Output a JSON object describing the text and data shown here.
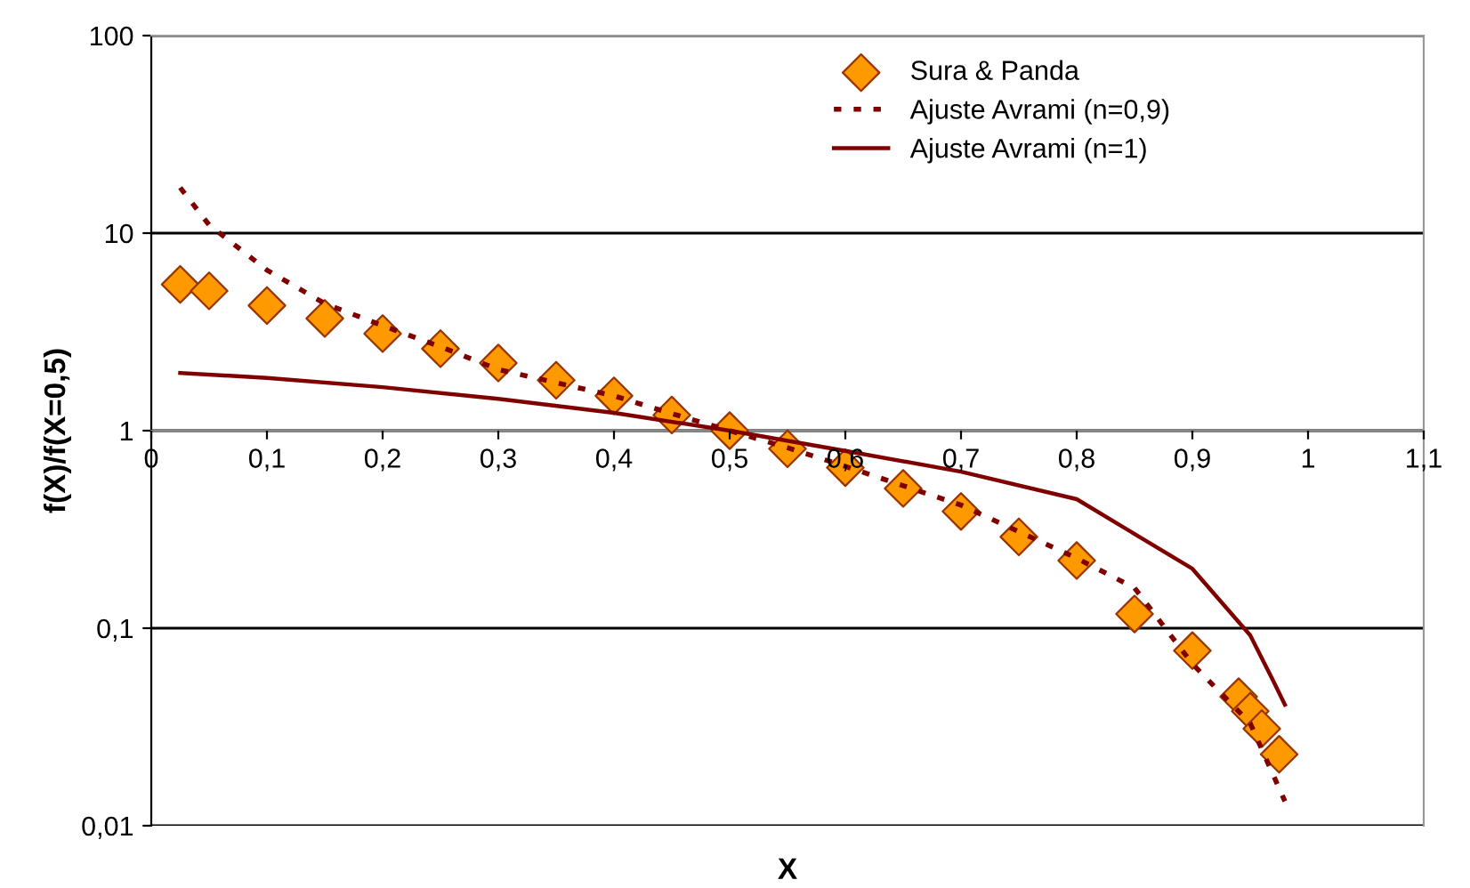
{
  "chart_data": {
    "type": "line",
    "xlabel": "X",
    "ylabel": "f(X)/f(X=0,5)",
    "log": "y",
    "xlim": [
      0,
      1.1
    ],
    "ylim": [
      0.01,
      100
    ],
    "xticks": [
      {
        "value": 0,
        "label": "0"
      },
      {
        "value": 0.1,
        "label": "0,1"
      },
      {
        "value": 0.2,
        "label": "0,2"
      },
      {
        "value": 0.3,
        "label": "0,3"
      },
      {
        "value": 0.4,
        "label": "0,4"
      },
      {
        "value": 0.5,
        "label": "0,5"
      },
      {
        "value": 0.6,
        "label": "0,6"
      },
      {
        "value": 0.7,
        "label": "0,7"
      },
      {
        "value": 0.8,
        "label": "0,8"
      },
      {
        "value": 0.9,
        "label": "0,9"
      },
      {
        "value": 1,
        "label": "1"
      },
      {
        "value": 1.1,
        "label": "1,1"
      }
    ],
    "yticks": [
      {
        "value": 0.01,
        "label": "0,01"
      },
      {
        "value": 0.1,
        "label": "0,1"
      },
      1,
      10,
      100
    ],
    "grid": "y",
    "legend": "top right",
    "series": [
      {
        "name": "Sura & Panda",
        "type": "scatter",
        "marker": "diamond",
        "color": "#ff9900",
        "x": [
          0.025,
          0.05,
          0.1,
          0.15,
          0.2,
          0.25,
          0.3,
          0.35,
          0.4,
          0.45,
          0.5,
          0.55,
          0.6,
          0.65,
          0.7,
          0.75,
          0.8,
          0.85,
          0.9,
          0.94,
          0.95,
          0.96,
          0.975
        ],
        "values": [
          5.5,
          5.1,
          4.3,
          3.7,
          3.1,
          2.6,
          2.2,
          1.8,
          1.5,
          1.2,
          1.0,
          0.81,
          0.65,
          0.51,
          0.39,
          0.29,
          0.22,
          0.118,
          0.077,
          0.045,
          0.038,
          0.031,
          0.023
        ]
      },
      {
        "name": "Ajuste Avrami (n=0,9)",
        "line_style": "dotted",
        "color": "#800000",
        "x": [
          0.025,
          0.05,
          0.1,
          0.15,
          0.2,
          0.25,
          0.3,
          0.4,
          0.45,
          0.5,
          0.55,
          0.6,
          0.7,
          0.8,
          0.85,
          0.9,
          0.95,
          0.97,
          0.98
        ],
        "values": [
          17,
          11,
          6.5,
          4.4,
          3.4,
          2.66,
          2.04,
          1.5,
          1.22,
          1.0,
          0.82,
          0.66,
          0.42,
          0.226,
          0.16,
          0.066,
          0.033,
          0.018,
          0.0133
        ]
      },
      {
        "name": "Ajuste Avrami (n=1)",
        "line_style": "solid",
        "color": "#800000",
        "x": [
          0.025,
          0.1,
          0.2,
          0.3,
          0.4,
          0.5,
          0.6,
          0.7,
          0.8,
          0.85,
          0.9,
          0.95,
          0.97,
          0.98
        ],
        "values": [
          1.96,
          1.85,
          1.66,
          1.45,
          1.23,
          1.0,
          0.79,
          0.62,
          0.45,
          0.3,
          0.2,
          0.092,
          0.054,
          0.041
        ]
      }
    ]
  }
}
